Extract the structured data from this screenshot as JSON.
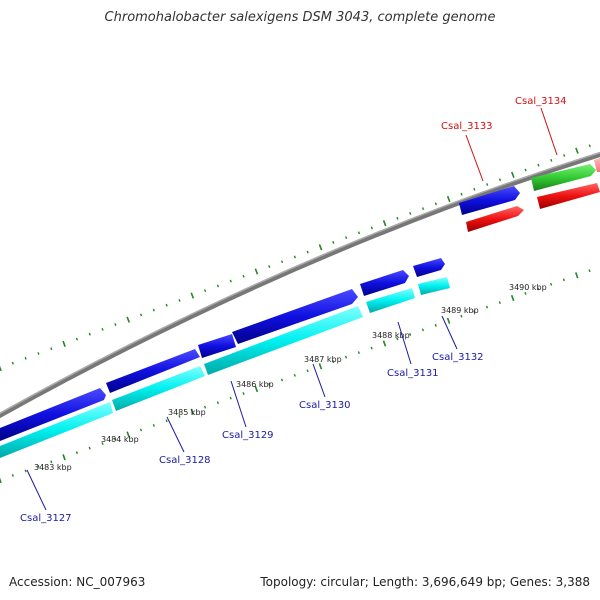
{
  "title": "Chromohalobacter salexigens DSM 3043, complete genome",
  "footer": {
    "accession": "Accession: NC_007963",
    "stats": "Topology: circular; Length: 3,696,649 bp; Genes: 3,388"
  },
  "colors": {
    "forward_cds": "#1010e0",
    "reverse_cds": "#00f0f0",
    "red_gene": "#ee1111",
    "green_gene": "#33cc33",
    "backbone": "#888888",
    "ticks": "#228822",
    "label_blue": "#1a1aa0",
    "label_red": "#cc1111"
  },
  "scale": {
    "unit": "kbp",
    "labels": [
      {
        "value": 3483,
        "text": "3483 kbp"
      },
      {
        "value": 3484,
        "text": "3484 kbp"
      },
      {
        "value": 3485,
        "text": "3485 kbp"
      },
      {
        "value": 3486,
        "text": "3486 kbp"
      },
      {
        "value": 3487,
        "text": "3487 kbp"
      },
      {
        "value": 3488,
        "text": "3488 kbp"
      },
      {
        "value": 3489,
        "text": "3489 kbp"
      },
      {
        "value": 3490,
        "text": "3490 kbp"
      }
    ]
  },
  "genes": [
    {
      "name": "Csal_3127",
      "label_color": "blue"
    },
    {
      "name": "Csal_3128",
      "label_color": "blue"
    },
    {
      "name": "Csal_3129",
      "label_color": "blue"
    },
    {
      "name": "Csal_3130",
      "label_color": "blue"
    },
    {
      "name": "Csal_3131",
      "label_color": "blue"
    },
    {
      "name": "Csal_3132",
      "label_color": "blue"
    },
    {
      "name": "Csal_3133",
      "label_color": "red"
    },
    {
      "name": "Csal_3134",
      "label_color": "red"
    }
  ]
}
